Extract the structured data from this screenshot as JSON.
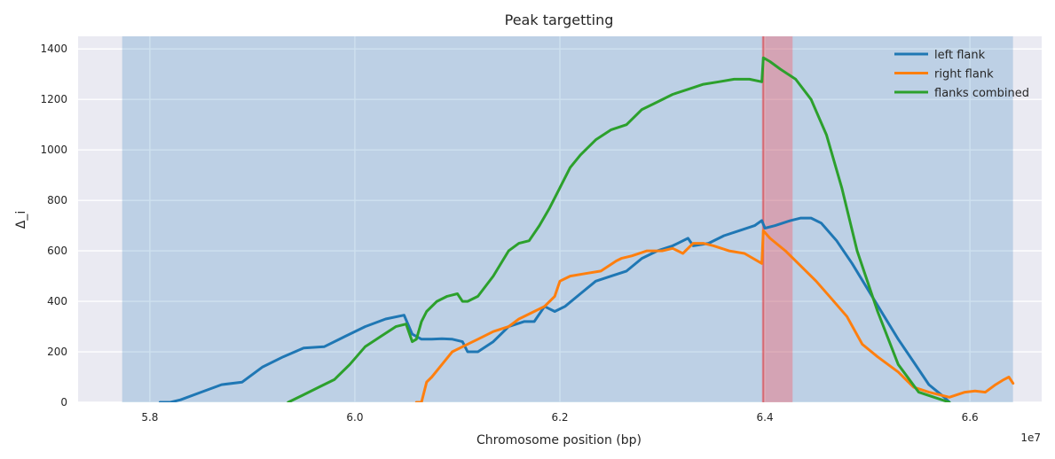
{
  "chart_data": {
    "type": "line",
    "title": "Peak targetting",
    "xlabel": "Chromosome position (bp)",
    "ylabel": "Δ_i",
    "x_offset_label": "1e7",
    "xlim": [
      57300000,
      66700000
    ],
    "ylim": [
      0,
      1450
    ],
    "xticks": [
      58000000,
      60000000,
      62000000,
      64000000,
      66000000
    ],
    "xtick_labels": [
      "5.8",
      "6.0",
      "6.2",
      "6.4",
      "6.6"
    ],
    "yticks": [
      0,
      200,
      400,
      600,
      800,
      1000,
      1200,
      1400
    ],
    "ytick_labels": [
      "0",
      "200",
      "400",
      "600",
      "800",
      "1000",
      "1200",
      "1400"
    ],
    "grid": true,
    "legend_position": "top-right",
    "regions": [
      {
        "x0": 57730000,
        "x1": 66420000,
        "color": "#1f77b4",
        "opacity": 0.22
      },
      {
        "x0": 63970000,
        "x1": 64270000,
        "color": "#ff4f5a",
        "opacity": 0.35
      }
    ],
    "peak_line": {
      "x": 63985000,
      "color": "#d62728"
    },
    "series": [
      {
        "name": "left flank",
        "color": "#1f77b4",
        "x": [
          58100000,
          58200000,
          58300000,
          58500000,
          58700000,
          58900000,
          59100000,
          59300000,
          59500000,
          59700000,
          59900000,
          60100000,
          60300000,
          60480000,
          60560000,
          60650000,
          60750000,
          60850000,
          60950000,
          61050000,
          61100000,
          61200000,
          61350000,
          61500000,
          61650000,
          61750000,
          61850000,
          61950000,
          62050000,
          62200000,
          62350000,
          62500000,
          62650000,
          62800000,
          62950000,
          63100000,
          63250000,
          63300000,
          63450000,
          63600000,
          63750000,
          63900000,
          63970000,
          64000000,
          64100000,
          64250000,
          64350000,
          64450000,
          64550000,
          64700000,
          64850000,
          65000000,
          65150000,
          65300000,
          65450000,
          65600000,
          65750000,
          65800000
        ],
        "values": [
          0,
          0,
          10,
          40,
          70,
          80,
          140,
          180,
          215,
          220,
          260,
          300,
          330,
          345,
          270,
          250,
          250,
          252,
          250,
          240,
          200,
          200,
          240,
          300,
          320,
          320,
          380,
          360,
          380,
          430,
          480,
          500,
          520,
          570,
          600,
          620,
          650,
          620,
          630,
          660,
          680,
          700,
          720,
          690,
          700,
          720,
          730,
          730,
          710,
          640,
          550,
          450,
          350,
          250,
          160,
          70,
          20,
          0
        ]
      },
      {
        "name": "right flank",
        "color": "#ff7f0e",
        "x": [
          60600000,
          60650000,
          60700000,
          60750000,
          60850000,
          60950000,
          61050000,
          61200000,
          61350000,
          61500000,
          61600000,
          61750000,
          61850000,
          61950000,
          62000000,
          62100000,
          62250000,
          62400000,
          62550000,
          62600000,
          62700000,
          62850000,
          63000000,
          63100000,
          63200000,
          63300000,
          63400000,
          63500000,
          63650000,
          63800000,
          63970000,
          63985000,
          64050000,
          64200000,
          64350000,
          64500000,
          64650000,
          64800000,
          64950000,
          65100000,
          65300000,
          65450000,
          65600000,
          65800000,
          65950000,
          66050000,
          66150000,
          66250000,
          66330000,
          66380000,
          66420000
        ],
        "values": [
          0,
          0,
          80,
          100,
          150,
          200,
          220,
          250,
          280,
          300,
          330,
          360,
          380,
          420,
          480,
          500,
          510,
          520,
          560,
          570,
          580,
          600,
          600,
          610,
          590,
          630,
          630,
          620,
          600,
          590,
          550,
          680,
          650,
          600,
          540,
          480,
          410,
          340,
          230,
          180,
          120,
          60,
          40,
          20,
          40,
          45,
          40,
          70,
          90,
          100,
          75
        ]
      },
      {
        "name": "flanks combined",
        "color": "#2ca02c",
        "x": [
          59350000,
          59500000,
          59650000,
          59800000,
          59950000,
          60100000,
          60250000,
          60400000,
          60500000,
          60560000,
          60600000,
          60650000,
          60700000,
          60800000,
          60900000,
          61000000,
          61050000,
          61100000,
          61200000,
          61350000,
          61500000,
          61600000,
          61700000,
          61800000,
          61900000,
          62000000,
          62100000,
          62200000,
          62350000,
          62500000,
          62650000,
          62800000,
          62950000,
          63100000,
          63250000,
          63400000,
          63550000,
          63700000,
          63850000,
          63970000,
          63985000,
          64050000,
          64150000,
          64300000,
          64450000,
          64600000,
          64750000,
          64900000,
          65100000,
          65300000,
          65500000,
          65650000,
          65800000
        ],
        "values": [
          0,
          30,
          60,
          90,
          150,
          220,
          260,
          300,
          310,
          240,
          250,
          320,
          360,
          400,
          420,
          430,
          400,
          400,
          420,
          500,
          600,
          630,
          640,
          700,
          770,
          850,
          930,
          980,
          1040,
          1080,
          1100,
          1160,
          1190,
          1220,
          1240,
          1260,
          1270,
          1280,
          1280,
          1270,
          1365,
          1350,
          1320,
          1280,
          1200,
          1060,
          850,
          600,
          360,
          150,
          40,
          20,
          0
        ]
      }
    ]
  }
}
